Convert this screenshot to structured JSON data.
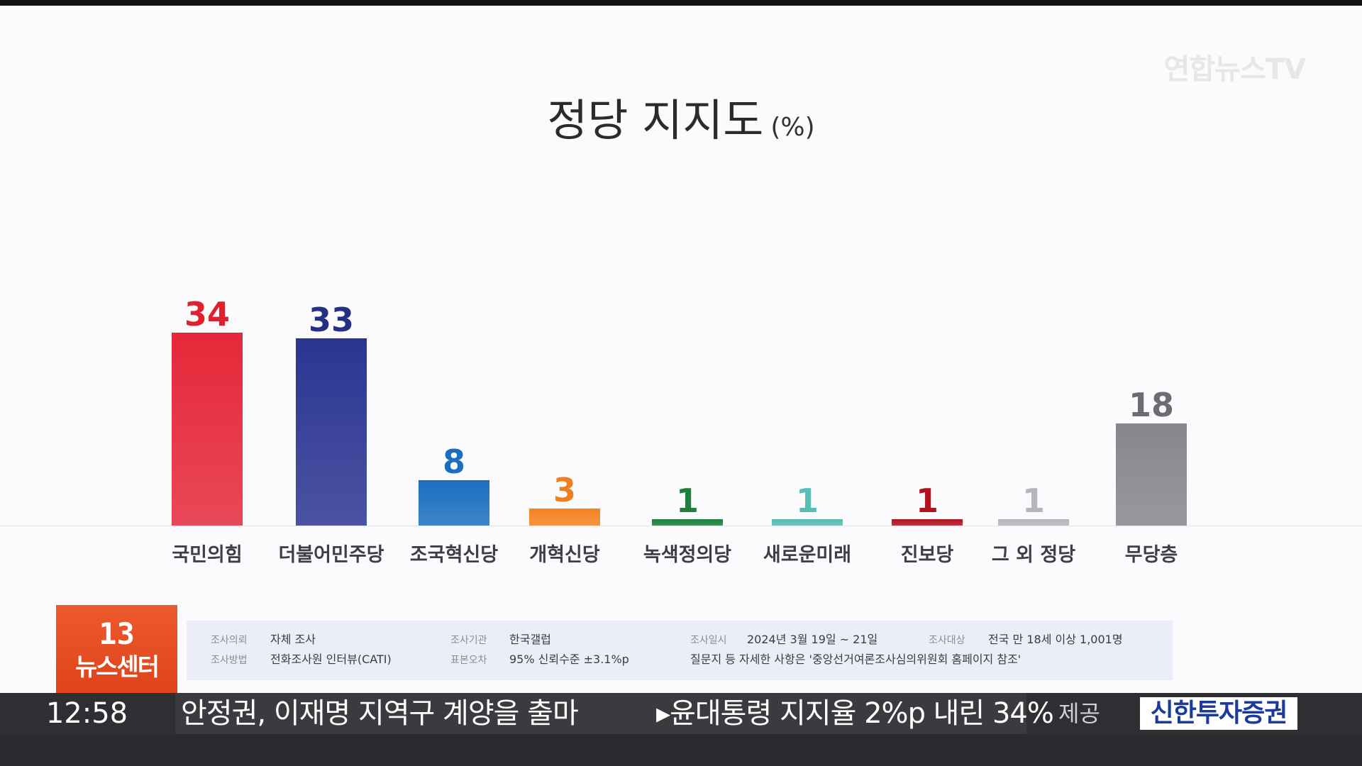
{
  "watermark": "연합뉴스TV",
  "chart_data": {
    "type": "bar",
    "title": "정당 지지도",
    "unit": "(%)",
    "categories": [
      "국민의힘",
      "더불어민주당",
      "조국혁신당",
      "개혁신당",
      "녹색정의당",
      "새로운미래",
      "진보당",
      "그 외 정당",
      "무당층"
    ],
    "values": [
      34,
      33,
      8,
      3,
      1,
      1,
      1,
      1,
      18
    ],
    "colors": [
      "#e5283a",
      "#2b3591",
      "#1b6fc0",
      "#f58220",
      "#1f7f3f",
      "#58bdb4",
      "#b0131f",
      "#b5b6bd",
      "#85878d"
    ],
    "label_colors": [
      "#e1202e",
      "#252f84",
      "#1b6fc0",
      "#f07d1e",
      "#1f7f3f",
      "#58bdb4",
      "#b0131f",
      "#b5b6bd",
      "#6b6d73"
    ],
    "ylim": [
      0,
      40
    ]
  },
  "badge": {
    "number": "13",
    "label": "뉴스센터"
  },
  "survey_info": [
    {
      "label": "조사의뢰",
      "value": "자체 조사"
    },
    {
      "label": "조사방법",
      "value": "전화조사원 인터뷰(CATI)"
    },
    {
      "label": "조사기관",
      "value": "한국갤럽"
    },
    {
      "label": "표본오차",
      "value": "95% 신뢰수준 ±3.1%p"
    },
    {
      "label": "조사일시",
      "value": "2024년 3월 19일 ~ 21일"
    },
    {
      "label": "조사대상",
      "value": "전국 만 18세 이상 1,001명"
    },
    {
      "note": "질문지 등 자세한 사항은 '중앙선거여론조사심의위원회 홈페이지 참조'"
    }
  ],
  "ticker": {
    "time": "12:58",
    "headline1": "안정권, 이재명 지역구 계양을 출마",
    "headline2": "▸윤대통령 지지율 2%p 내린 34%",
    "provided_label": "제공",
    "sponsor": "신한투자증권"
  }
}
